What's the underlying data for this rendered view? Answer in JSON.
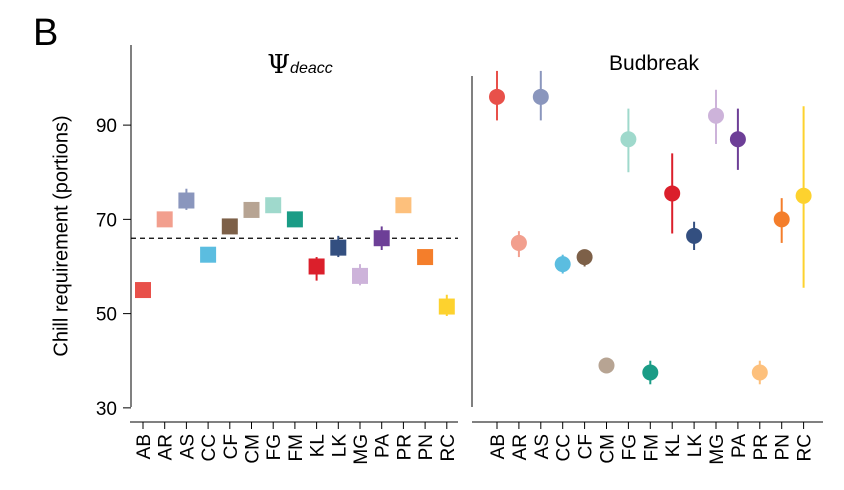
{
  "panel_letter": "B",
  "chart_data": {
    "type": "scatter",
    "ylabel": "Chill requirement (portions)",
    "ylim": [
      27,
      107
    ],
    "yticks": [
      30,
      50,
      70,
      90
    ],
    "categories": [
      "AB",
      "AR",
      "AS",
      "CC",
      "CF",
      "CM",
      "FG",
      "FM",
      "KL",
      "LK",
      "MG",
      "PA",
      "PR",
      "PN",
      "RC"
    ],
    "colors": {
      "AB": "#e8504a",
      "AR": "#f29f8e",
      "AS": "#8a96bd",
      "CC": "#5bbde0",
      "CF": "#7d6048",
      "CM": "#b7a493",
      "FG": "#9fd9cc",
      "FM": "#1a9c86",
      "KL": "#db1f2b",
      "LK": "#334f80",
      "MG": "#cdb3da",
      "PA": "#6d3f97",
      "PR": "#fdc07c",
      "PN": "#f47e2b",
      "RC": "#fdd22e"
    },
    "panels": [
      {
        "title_symbol": "Ψ",
        "title_subscript": "deacc",
        "marker": "square",
        "reference_line": 66,
        "values": [
          55,
          70,
          74,
          62.5,
          68.5,
          72,
          73,
          70,
          60,
          64,
          58,
          66,
          73,
          62,
          51.5
        ],
        "error_low": [
          null,
          null,
          72,
          null,
          null,
          null,
          null,
          null,
          57,
          62,
          56,
          63.5,
          null,
          null,
          49.5
        ],
        "error_high": [
          null,
          null,
          76.5,
          null,
          null,
          null,
          null,
          null,
          62,
          66.5,
          60.5,
          68.5,
          null,
          null,
          54
        ]
      },
      {
        "title": "Budbreak",
        "marker": "circle",
        "values": [
          96,
          65,
          96,
          60.5,
          62,
          39,
          87,
          37.5,
          75.5,
          66.5,
          92,
          87,
          37.5,
          70,
          75
        ],
        "error_low": [
          91,
          62,
          91,
          58.5,
          60,
          38,
          80,
          35,
          67,
          63.5,
          86,
          80.5,
          35,
          65,
          55.5
        ],
        "error_high": [
          101.5,
          67.5,
          101.5,
          62.5,
          63.5,
          40,
          93.5,
          40,
          84,
          69.5,
          97.5,
          93.5,
          40,
          74.5,
          94
        ]
      }
    ]
  }
}
